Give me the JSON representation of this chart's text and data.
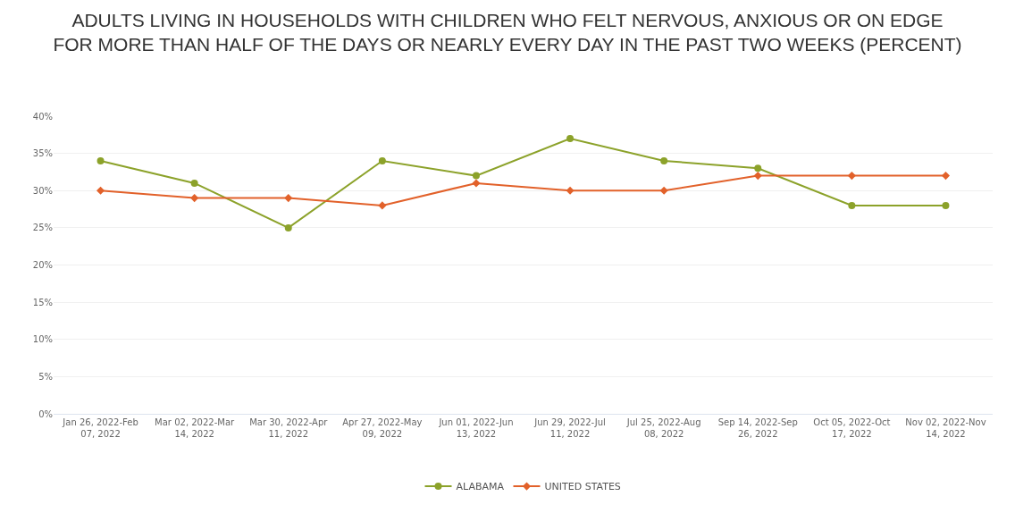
{
  "chart_data": {
    "type": "line",
    "title": "ADULTS LIVING IN HOUSEHOLDS WITH CHILDREN WHO FELT NERVOUS, ANXIOUS OR ON EDGE\nFOR MORE THAN HALF OF THE DAYS OR NEARLY EVERY DAY IN THE PAST TWO WEEKS (PERCENT)",
    "categories": [
      "Jan 26, 2022-Feb\n07, 2022",
      "Mar 02, 2022-Mar\n14, 2022",
      "Mar 30, 2022-Apr\n11, 2022",
      "Apr 27, 2022-May\n09, 2022",
      "Jun 01, 2022-Jun\n13, 2022",
      "Jun 29, 2022-Jul\n11, 2022",
      "Jul 25, 2022-Aug\n08, 2022",
      "Sep 14, 2022-Sep\n26, 2022",
      "Oct 05, 2022-Oct\n17, 2022",
      "Nov 02, 2022-Nov\n14, 2022"
    ],
    "series": [
      {
        "name": "ALABAMA",
        "color": "#8ca22a",
        "marker": "circle",
        "values": [
          34,
          31,
          25,
          34,
          32,
          37,
          34,
          33,
          28,
          28
        ]
      },
      {
        "name": "UNITED STATES",
        "color": "#e2612a",
        "marker": "diamond",
        "values": [
          30,
          29,
          29,
          28,
          31,
          30,
          30,
          32,
          32,
          32
        ]
      }
    ],
    "ylim": [
      0,
      40
    ],
    "yticks": [
      {
        "value": 0,
        "label": "0%"
      },
      {
        "value": 5,
        "label": "5%"
      },
      {
        "value": 10,
        "label": "10%"
      },
      {
        "value": 15,
        "label": "15%"
      },
      {
        "value": 20,
        "label": "20%"
      },
      {
        "value": 25,
        "label": "25%"
      },
      {
        "value": 30,
        "label": "30%"
      },
      {
        "value": 35,
        "label": "35%"
      },
      {
        "value": 40,
        "label": "40%"
      }
    ],
    "grid": "y",
    "legend": "bottom",
    "line_style": "solid"
  }
}
